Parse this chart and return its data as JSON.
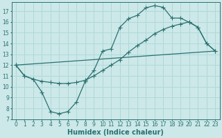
{
  "xlabel": "Humidex (Indice chaleur)",
  "bg_color": "#cce8e8",
  "line_color": "#2a7070",
  "grid_color": "#b0d8d8",
  "xlim": [
    -0.5,
    23.5
  ],
  "ylim": [
    7,
    17.8
  ],
  "yticks": [
    7,
    8,
    9,
    10,
    11,
    12,
    13,
    14,
    15,
    16,
    17
  ],
  "xticks": [
    0,
    1,
    2,
    3,
    4,
    5,
    6,
    7,
    8,
    9,
    10,
    11,
    12,
    13,
    14,
    15,
    16,
    17,
    18,
    19,
    20,
    21,
    22,
    23
  ],
  "line1_x": [
    0,
    1,
    2,
    3,
    4,
    5,
    6,
    7,
    8,
    9,
    10,
    11,
    12,
    13,
    14,
    15,
    16,
    17,
    18,
    19,
    20,
    21,
    22,
    23
  ],
  "line1_y": [
    12.0,
    11.0,
    10.7,
    9.5,
    7.7,
    7.5,
    7.7,
    8.6,
    10.5,
    11.5,
    13.3,
    13.5,
    15.5,
    16.3,
    16.6,
    17.3,
    17.5,
    17.35,
    16.35,
    16.35,
    15.95,
    15.5,
    14.0,
    13.3
  ],
  "line2_x": [
    0,
    1,
    2,
    3,
    4,
    5,
    6,
    7,
    8,
    9,
    10,
    11,
    12,
    13,
    14,
    15,
    16,
    17,
    18,
    19,
    20,
    21,
    22,
    23
  ],
  "line2_y": [
    12.0,
    11.0,
    10.7,
    10.5,
    10.4,
    10.3,
    10.3,
    10.4,
    10.6,
    11.0,
    11.5,
    12.0,
    12.5,
    13.2,
    13.8,
    14.3,
    14.9,
    15.3,
    15.6,
    15.8,
    16.0,
    15.5,
    14.0,
    13.3
  ],
  "line3_x": [
    0,
    23
  ],
  "line3_y": [
    12.0,
    13.3
  ],
  "marker_size": 2.5,
  "linewidth": 0.9,
  "tick_fontsize": 5.5,
  "label_fontsize": 7.0
}
